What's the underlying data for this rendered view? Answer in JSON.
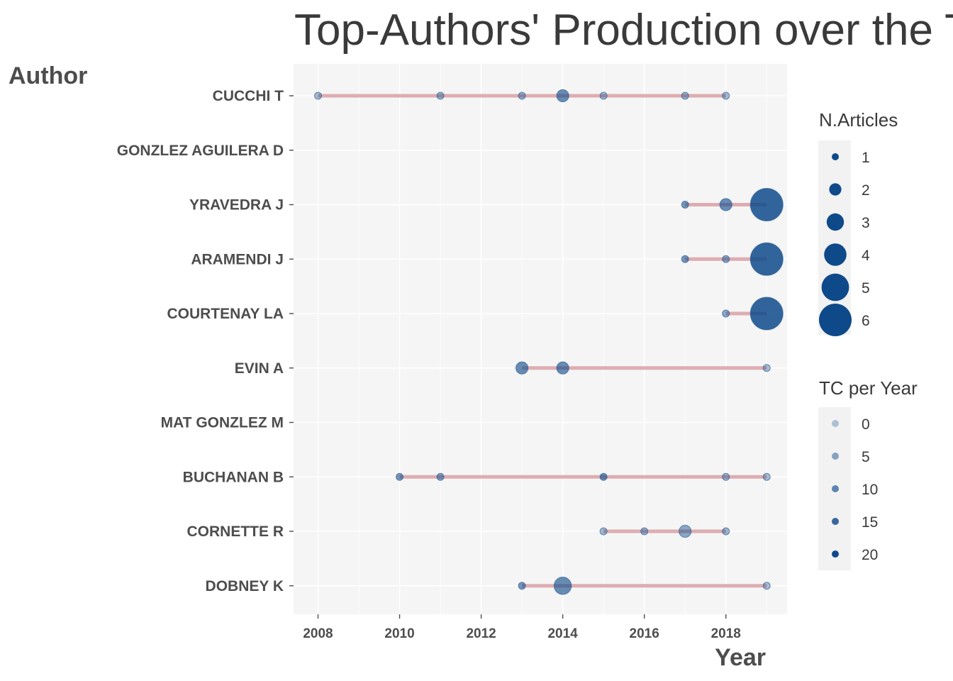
{
  "chart_data": {
    "type": "scatter",
    "title": "Top-Authors' Production over the Time",
    "xlabel": "Year",
    "ylabel": "Author",
    "xlim": [
      2007.4,
      2019.5
    ],
    "x_ticks": [
      "2008",
      "2010",
      "2012",
      "2014",
      "2016",
      "2018"
    ],
    "grid": true,
    "line_color": "#d9a0a5",
    "point_color": "#0e4a8a",
    "panel_color": "#f5f5f5",
    "authors": [
      {
        "name": "CUCCHI T",
        "points": [
          {
            "year": 2008,
            "articles": 1,
            "tc": 2
          },
          {
            "year": 2011,
            "articles": 1,
            "tc": 3
          },
          {
            "year": 2013,
            "articles": 1,
            "tc": 4
          },
          {
            "year": 2014,
            "articles": 2,
            "tc": 12
          },
          {
            "year": 2015,
            "articles": 1,
            "tc": 2
          },
          {
            "year": 2017,
            "articles": 1,
            "tc": 3
          },
          {
            "year": 2018,
            "articles": 1,
            "tc": 2
          }
        ]
      },
      {
        "name": "GONZLEZ AGUILERA D",
        "points": []
      },
      {
        "name": "YRAVEDRA J",
        "points": [
          {
            "year": 2017,
            "articles": 1,
            "tc": 10
          },
          {
            "year": 2018,
            "articles": 2,
            "tc": 12
          },
          {
            "year": 2019,
            "articles": 6,
            "tc": 22
          }
        ]
      },
      {
        "name": "ARAMENDI J",
        "points": [
          {
            "year": 2017,
            "articles": 1,
            "tc": 10
          },
          {
            "year": 2018,
            "articles": 1,
            "tc": 6
          },
          {
            "year": 2019,
            "articles": 6,
            "tc": 22
          }
        ]
      },
      {
        "name": "COURTENAY LA",
        "points": [
          {
            "year": 2018,
            "articles": 1,
            "tc": 6
          },
          {
            "year": 2019,
            "articles": 6,
            "tc": 22
          }
        ]
      },
      {
        "name": "EVIN A",
        "points": [
          {
            "year": 2013,
            "articles": 2,
            "tc": 12
          },
          {
            "year": 2014,
            "articles": 2,
            "tc": 12
          },
          {
            "year": 2019,
            "articles": 1,
            "tc": 1
          }
        ]
      },
      {
        "name": "MAT GONZLEZ M",
        "points": []
      },
      {
        "name": "BUCHANAN B",
        "points": [
          {
            "year": 2010,
            "articles": 1,
            "tc": 10
          },
          {
            "year": 2011,
            "articles": 1,
            "tc": 8
          },
          {
            "year": 2015,
            "articles": 1,
            "tc": 12
          },
          {
            "year": 2018,
            "articles": 1,
            "tc": 3
          },
          {
            "year": 2019,
            "articles": 1,
            "tc": 1
          }
        ]
      },
      {
        "name": "CORNETTE R",
        "points": [
          {
            "year": 2015,
            "articles": 1,
            "tc": 2
          },
          {
            "year": 2016,
            "articles": 1,
            "tc": 4
          },
          {
            "year": 2017,
            "articles": 2,
            "tc": 6
          },
          {
            "year": 2018,
            "articles": 1,
            "tc": 3
          }
        ]
      },
      {
        "name": "DOBNEY K",
        "points": [
          {
            "year": 2013,
            "articles": 1,
            "tc": 10
          },
          {
            "year": 2014,
            "articles": 3,
            "tc": 12
          },
          {
            "year": 2019,
            "articles": 1,
            "tc": 1
          }
        ]
      }
    ],
    "legend_articles": {
      "title": "N.Articles",
      "items": [
        "1",
        "2",
        "3",
        "4",
        "5",
        "6"
      ]
    },
    "legend_tc": {
      "title": "TC per Year",
      "items": [
        "0",
        "5",
        "10",
        "15",
        "20"
      ]
    }
  }
}
